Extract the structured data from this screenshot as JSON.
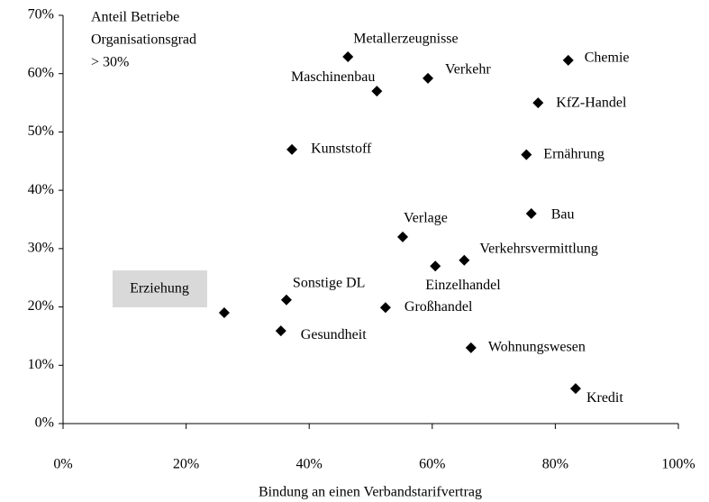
{
  "chart_data": {
    "type": "scatter",
    "annotation": [
      "Anteil Betriebe",
      "Organisationsgrad",
      "> 30%"
    ],
    "x_label": "Bindung an einen Verbandstarifvertrag",
    "color": "#000000",
    "xlim": [
      0,
      100
    ],
    "ylim": [
      0,
      70
    ],
    "xticks": [
      {
        "value": 0,
        "label": "0%"
      },
      {
        "value": 20,
        "label": "20%"
      },
      {
        "value": 40,
        "label": "40%"
      },
      {
        "value": 60,
        "label": "60%"
      },
      {
        "value": 80,
        "label": "80%"
      },
      {
        "value": 100,
        "label": "100%"
      }
    ],
    "yticks": [
      {
        "value": 0,
        "label": "0%"
      },
      {
        "value": 10,
        "label": "10%"
      },
      {
        "value": 20,
        "label": "20%"
      },
      {
        "value": 30,
        "label": "30%"
      },
      {
        "value": 40,
        "label": "40%"
      },
      {
        "value": 50,
        "label": "50%"
      },
      {
        "value": 60,
        "label": "60%"
      },
      {
        "value": 70,
        "label": "70%"
      }
    ],
    "points": [
      {
        "label": "Erziehung",
        "x": 26.2,
        "y": 19.0,
        "highlight": "#d9d9d9"
      },
      {
        "label": "Gesundheit",
        "x": 35.4,
        "y": 15.9
      },
      {
        "label": "Sonstige DL",
        "x": 36.3,
        "y": 21.2
      },
      {
        "label": "Kunststoff",
        "x": 37.2,
        "y": 47.0
      },
      {
        "label": "Metallerzeugnisse",
        "x": 46.3,
        "y": 62.9
      },
      {
        "label": "Maschinenbau",
        "x": 51.0,
        "y": 57.0
      },
      {
        "label": "Großhandel",
        "x": 52.4,
        "y": 19.9
      },
      {
        "label": "Verlage",
        "x": 55.2,
        "y": 32.0
      },
      {
        "label": "Verkehr",
        "x": 59.3,
        "y": 59.2
      },
      {
        "label": "Einzelhandel",
        "x": 60.5,
        "y": 27.0
      },
      {
        "label": "Verkehrsvermittlung",
        "x": 65.2,
        "y": 28.0
      },
      {
        "label": "Wohnungswesen",
        "x": 66.3,
        "y": 13.0
      },
      {
        "label": "Ernährung",
        "x": 75.3,
        "y": 46.1
      },
      {
        "label": "Bau",
        "x": 76.1,
        "y": 36.0
      },
      {
        "label": "KfZ-Handel",
        "x": 77.2,
        "y": 55.0
      },
      {
        "label": "Chemie",
        "x": 82.1,
        "y": 62.3
      },
      {
        "label": "Kredit",
        "x": 83.3,
        "y": 6.0
      }
    ]
  }
}
